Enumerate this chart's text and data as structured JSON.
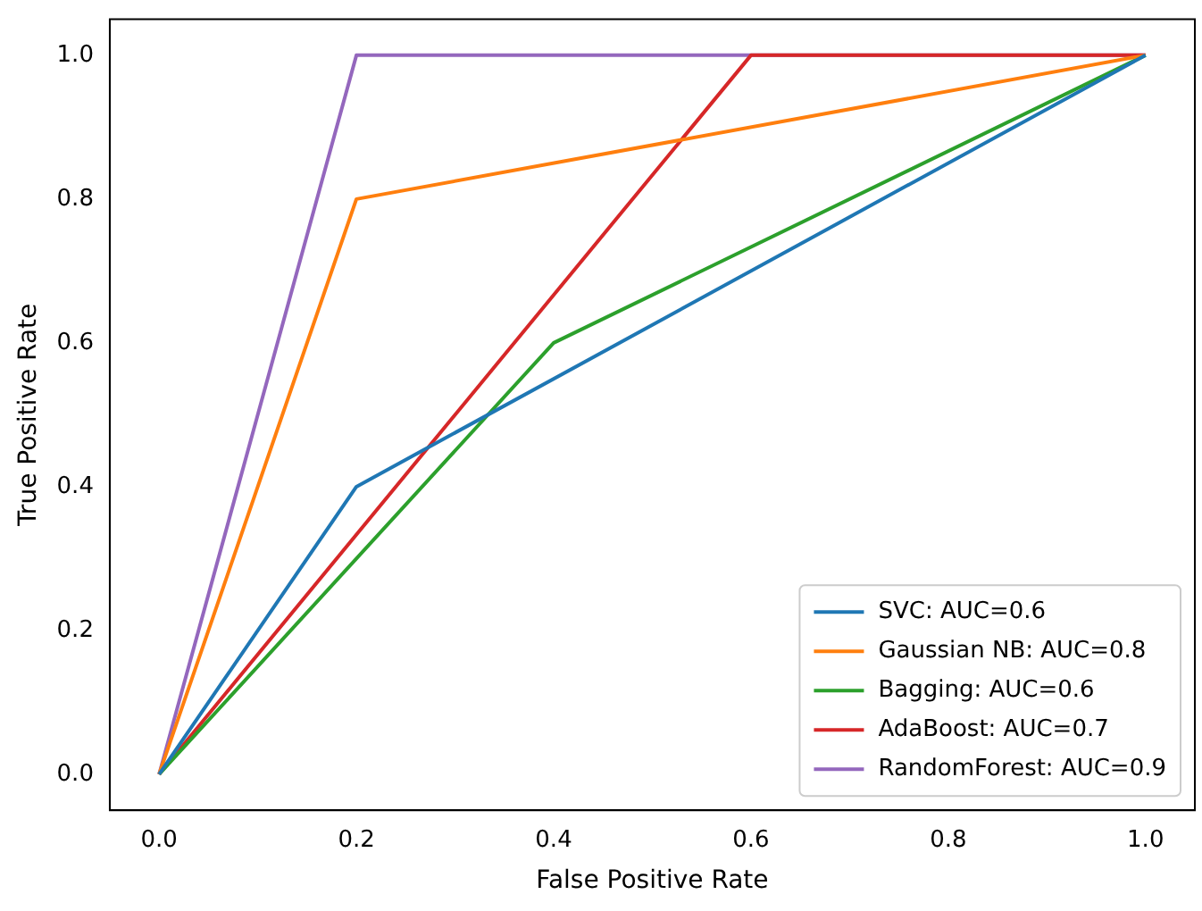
{
  "chart_data": {
    "type": "line",
    "xlabel": "False Positive Rate",
    "ylabel": "True Positive Rate",
    "xlim": [
      -0.05,
      1.05
    ],
    "ylim": [
      -0.05,
      1.05
    ],
    "xticks": [
      {
        "value": 0,
        "label": "0.0"
      },
      {
        "value": 0.2,
        "label": "0.2"
      },
      {
        "value": 0.4,
        "label": "0.4"
      },
      {
        "value": 0.6,
        "label": "0.6"
      },
      {
        "value": 0.8,
        "label": "0.8"
      },
      {
        "value": 1,
        "label": "1.0"
      }
    ],
    "yticks": [
      {
        "value": 0,
        "label": "0.0"
      },
      {
        "value": 0.2,
        "label": "0.2"
      },
      {
        "value": 0.4,
        "label": "0.4"
      },
      {
        "value": 0.6,
        "label": "0.6"
      },
      {
        "value": 0.8,
        "label": "0.8"
      },
      {
        "value": 1,
        "label": "1.0"
      }
    ],
    "grid": false,
    "legend": "bottom right",
    "marker": "none",
    "line_style": "solid",
    "series": [
      {
        "name": "SVC: AUC=0.6",
        "color": "#1f77b4",
        "x": [
          0,
          0.2,
          1
        ],
        "values": [
          0,
          0.4,
          1
        ]
      },
      {
        "name": "Gaussian NB: AUC=0.8",
        "color": "#ff7f0e",
        "x": [
          0,
          0.2,
          1
        ],
        "values": [
          0,
          0.8,
          1
        ]
      },
      {
        "name": "Bagging: AUC=0.6",
        "color": "#2ca02c",
        "x": [
          0,
          0.4,
          1
        ],
        "values": [
          0,
          0.6,
          1
        ]
      },
      {
        "name": "AdaBoost: AUC=0.7",
        "color": "#d62728",
        "x": [
          0,
          0.6,
          1
        ],
        "values": [
          0,
          1,
          1
        ]
      },
      {
        "name": "RandomForest: AUC=0.9",
        "color": "#9467bd",
        "x": [
          0,
          0.2,
          1
        ],
        "values": [
          0,
          1,
          1
        ]
      }
    ]
  }
}
